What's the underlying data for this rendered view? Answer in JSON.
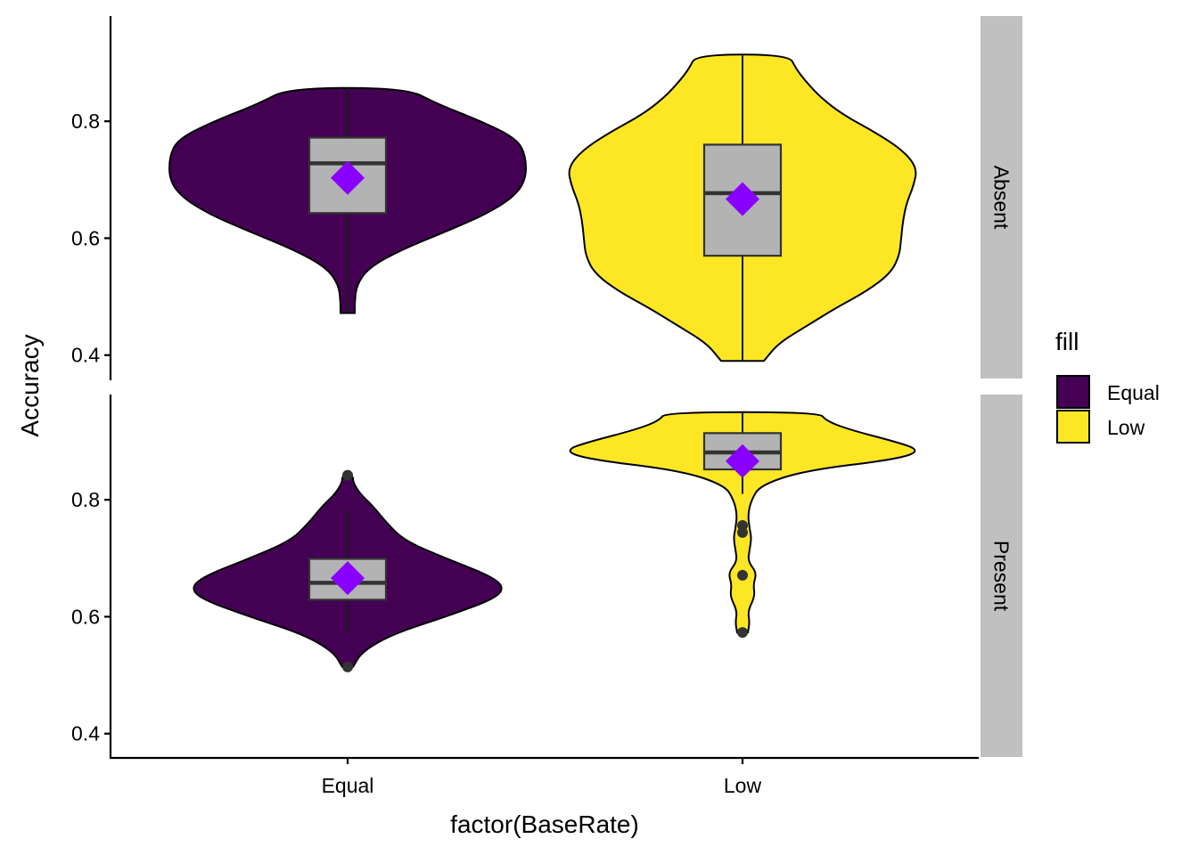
{
  "chart_data": {
    "type": "violin",
    "xlabel": "factor(BaseRate)",
    "ylabel": "Accuracy",
    "categories": [
      "Equal",
      "Low"
    ],
    "yticks": [
      0.4,
      0.6,
      0.8
    ],
    "legend": {
      "title": "fill",
      "position": "right",
      "entries": [
        {
          "label": "Equal",
          "color": "#440154"
        },
        {
          "label": "Low",
          "color": "#FDE725"
        }
      ]
    },
    "colors": {
      "box_fill": "#B3B3B3",
      "mean_marker": "#8A00FF",
      "strip_fill": "#C0C0C0"
    },
    "panels": [
      {
        "strip": "Absent",
        "ylim": [
          0.36,
          0.98
        ],
        "groups": [
          {
            "category": "Equal",
            "box": {
              "q1": 0.643,
              "median": 0.728,
              "q3": 0.772,
              "whisker_low": 0.472,
              "whisker_high": 0.857
            },
            "mean": 0.703,
            "outliers": [],
            "density": [
              [
                0.472,
                0.04
              ],
              [
                0.49,
                0.04
              ],
              [
                0.52,
                0.05
              ],
              [
                0.55,
                0.12
              ],
              [
                0.58,
                0.3
              ],
              [
                0.61,
                0.54
              ],
              [
                0.64,
                0.77
              ],
              [
                0.67,
                0.93
              ],
              [
                0.7,
                1.0
              ],
              [
                0.74,
                1.0
              ],
              [
                0.77,
                0.95
              ],
              [
                0.8,
                0.75
              ],
              [
                0.83,
                0.5
              ],
              [
                0.857,
                0.33
              ]
            ]
          },
          {
            "category": "Low",
            "box": {
              "q1": 0.57,
              "median": 0.677,
              "q3": 0.76,
              "whisker_low": 0.39,
              "whisker_high": 0.914
            },
            "mean": 0.667,
            "outliers": [],
            "density": [
              [
                0.39,
                0.12
              ],
              [
                0.42,
                0.2
              ],
              [
                0.45,
                0.36
              ],
              [
                0.48,
                0.52
              ],
              [
                0.51,
                0.7
              ],
              [
                0.54,
                0.83
              ],
              [
                0.57,
                0.88
              ],
              [
                0.6,
                0.89
              ],
              [
                0.63,
                0.9
              ],
              [
                0.66,
                0.92
              ],
              [
                0.69,
                0.96
              ],
              [
                0.72,
                0.98
              ],
              [
                0.75,
                0.9
              ],
              [
                0.78,
                0.75
              ],
              [
                0.81,
                0.57
              ],
              [
                0.84,
                0.44
              ],
              [
                0.87,
                0.35
              ],
              [
                0.89,
                0.3
              ],
              [
                0.914,
                0.26
              ]
            ]
          }
        ]
      },
      {
        "strip": "Present",
        "ylim": [
          0.36,
          0.98
        ],
        "groups": [
          {
            "category": "Equal",
            "box": {
              "q1": 0.629,
              "median": 0.658,
              "q3": 0.699,
              "whisker_low": 0.571,
              "whisker_high": 0.783
            },
            "mean": 0.666,
            "outliers": [
              0.514,
              0.842
            ],
            "density": [
              [
                0.514,
                0.03
              ],
              [
                0.54,
                0.08
              ],
              [
                0.57,
                0.25
              ],
              [
                0.6,
                0.55
              ],
              [
                0.63,
                0.82
              ],
              [
                0.65,
                0.88
              ],
              [
                0.67,
                0.8
              ],
              [
                0.7,
                0.55
              ],
              [
                0.73,
                0.32
              ],
              [
                0.76,
                0.22
              ],
              [
                0.79,
                0.14
              ],
              [
                0.81,
                0.07
              ],
              [
                0.83,
                0.03
              ],
              [
                0.842,
                0.03
              ]
            ]
          },
          {
            "category": "Low",
            "box": {
              "q1": 0.852,
              "median": 0.881,
              "q3": 0.914,
              "whisker_low": 0.81,
              "whisker_high": 0.95
            },
            "mean": 0.866,
            "outliers": [
              0.756,
              0.744,
              0.671,
              0.573
            ],
            "density": [
              [
                0.573,
                0.03
              ],
              [
                0.59,
                0.04
              ],
              [
                0.61,
                0.03
              ],
              [
                0.635,
                0.07
              ],
              [
                0.655,
                0.06
              ],
              [
                0.675,
                0.08
              ],
              [
                0.695,
                0.03
              ],
              [
                0.715,
                0.04
              ],
              [
                0.735,
                0.05
              ],
              [
                0.75,
                0.04
              ],
              [
                0.775,
                0.03
              ],
              [
                0.8,
                0.05
              ],
              [
                0.825,
                0.1
              ],
              [
                0.85,
                0.35
              ],
              [
                0.87,
                0.88
              ],
              [
                0.885,
                1.0
              ],
              [
                0.9,
                0.85
              ],
              [
                0.92,
                0.6
              ],
              [
                0.935,
                0.47
              ],
              [
                0.95,
                0.43
              ]
            ]
          }
        ]
      }
    ]
  }
}
